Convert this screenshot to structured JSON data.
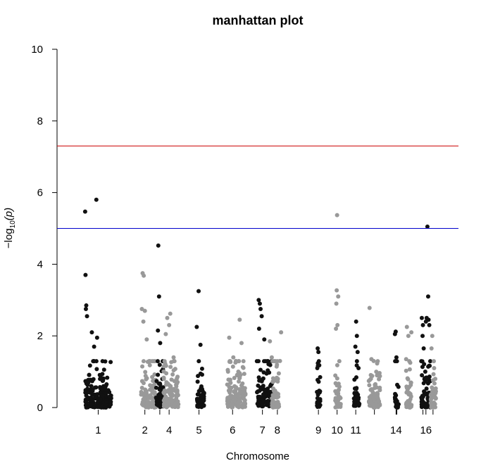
{
  "chart_data": {
    "type": "scatter",
    "title": "manhattan plot",
    "xlabel": "Chromosome",
    "ylabel_main": "−log",
    "ylabel_sub": "10",
    "ylabel_arg": "(p)",
    "ylim": [
      0,
      10
    ],
    "yticks": [
      0,
      2,
      4,
      6,
      8,
      10
    ],
    "thresholds": {
      "genomewide": {
        "value": 7.3,
        "color": "#cc0000"
      },
      "suggestive": {
        "value": 5.0,
        "color": "#0000cc"
      }
    },
    "colors": {
      "odd": "#111111",
      "even": "#999999"
    },
    "xlim": [
      0,
      100
    ],
    "chromosomes": [
      {
        "chr": "1",
        "label": "1",
        "range": [
          3,
          10
        ],
        "label_pos": 6.5,
        "color": "odd",
        "peaks": [
          [
            3.0,
            5.47
          ],
          [
            3.1,
            3.7
          ],
          [
            3.3,
            2.85
          ],
          [
            3.2,
            2.75
          ],
          [
            3.5,
            2.55
          ],
          [
            4.8,
            2.1
          ],
          [
            6.0,
            5.8
          ],
          [
            6.2,
            1.95
          ],
          [
            5.4,
            1.7
          ]
        ]
      },
      {
        "chr": "2",
        "label": "2",
        "range": [
          18,
          22
        ],
        "label_pos": 19,
        "color": "even",
        "peaks": [
          [
            18.4,
            3.75
          ],
          [
            18.7,
            3.68
          ],
          [
            18.2,
            2.75
          ],
          [
            19.0,
            2.7
          ],
          [
            18.6,
            2.4
          ],
          [
            19.5,
            1.9
          ]
        ]
      },
      {
        "chr": "3",
        "label": "",
        "range": [
          22,
          24
        ],
        "label_pos": 23,
        "color": "odd",
        "peaks": [
          [
            22.6,
            4.52
          ],
          [
            22.8,
            3.1
          ],
          [
            22.5,
            2.15
          ],
          [
            23.1,
            1.8
          ]
        ]
      },
      {
        "chr": "4",
        "label": "4",
        "range": [
          24,
          28
        ],
        "label_pos": 25.5,
        "color": "even",
        "peaks": [
          [
            25.8,
            2.62
          ],
          [
            25.0,
            2.5
          ],
          [
            25.5,
            2.3
          ],
          [
            24.6,
            2.05
          ],
          [
            26.7,
            1.4
          ],
          [
            27.5,
            0.7
          ]
        ]
      },
      {
        "chr": "5",
        "label": "5",
        "range": [
          33,
          35
        ],
        "label_pos": 33.5,
        "color": "odd",
        "peaks": [
          [
            33.4,
            3.25
          ],
          [
            32.9,
            2.25
          ],
          [
            33.9,
            1.75
          ],
          [
            34.6,
            0.4
          ],
          [
            34.8,
            0.05
          ]
        ]
      },
      {
        "chr": "6",
        "label": "6",
        "range": [
          41,
          46
        ],
        "label_pos": 42.5,
        "color": "even",
        "peaks": [
          [
            44.4,
            2.45
          ],
          [
            41.6,
            1.95
          ],
          [
            42.7,
            1.4
          ],
          [
            44.9,
            1.8
          ],
          [
            43.4,
            1.3
          ]
        ]
      },
      {
        "chr": "7",
        "label": "7",
        "range": [
          49,
          53
        ],
        "label_pos": 50.5,
        "color": "odd",
        "peaks": [
          [
            49.5,
            3.0
          ],
          [
            49.8,
            2.9
          ],
          [
            50.0,
            2.75
          ],
          [
            50.3,
            2.55
          ],
          [
            49.6,
            2.2
          ],
          [
            51.0,
            1.9
          ]
        ]
      },
      {
        "chr": "8",
        "label": "8",
        "range": [
          53,
          55
        ],
        "label_pos": 54.5,
        "color": "even",
        "peaks": [
          [
            52.5,
            1.85
          ],
          [
            55.5,
            2.1
          ],
          [
            53.0,
            1.4
          ],
          [
            55.2,
            1.3
          ]
        ]
      },
      {
        "chr": "9",
        "label": "9",
        "range": [
          65,
          66
        ],
        "label_pos": 65.5,
        "color": "odd",
        "peaks": [
          [
            65.3,
            1.65
          ],
          [
            65.5,
            1.55
          ],
          [
            65.2,
            1.1
          ]
        ]
      },
      {
        "chr": "10",
        "label": "10",
        "range": [
          70,
          71.5
        ],
        "label_pos": 70.5,
        "color": "even",
        "peaks": [
          [
            70.5,
            5.37
          ],
          [
            70.4,
            3.27
          ],
          [
            70.8,
            3.1
          ],
          [
            70.3,
            2.9
          ],
          [
            70.6,
            2.3
          ],
          [
            70.2,
            2.2
          ]
        ]
      },
      {
        "chr": "11",
        "label": "11",
        "range": [
          75,
          76.5
        ],
        "label_pos": 75.5,
        "color": "odd",
        "peaks": [
          [
            75.6,
            2.4
          ],
          [
            75.8,
            2.0
          ],
          [
            75.4,
            1.7
          ],
          [
            76.0,
            1.55
          ]
        ]
      },
      {
        "chr": "12",
        "label": "",
        "range": [
          79,
          82
        ],
        "label_pos": 80.5,
        "color": "even",
        "peaks": [
          [
            79.2,
            2.78
          ],
          [
            79.7,
            1.35
          ],
          [
            80.3,
            1.3
          ],
          [
            81.0,
            1.0
          ]
        ]
      },
      {
        "chr": "13",
        "label": "",
        "range": [
          86,
          87
        ],
        "label_pos": 86.5,
        "color": "odd",
        "peaks": [
          [
            86.2,
            2.12
          ],
          [
            86.0,
            2.05
          ],
          [
            86.4,
            1.4
          ]
        ]
      },
      {
        "chr": "14",
        "label": "14",
        "range": [
          89,
          90.5
        ],
        "label_pos": 86.3,
        "color": "even",
        "peaks": [
          [
            89.2,
            2.25
          ],
          [
            89.6,
            2.0
          ],
          [
            89.0,
            1.35
          ],
          [
            90.4,
            2.1
          ],
          [
            90.1,
            1.25
          ]
        ]
      },
      {
        "chr": "15",
        "label": "",
        "range": [
          93,
          94
        ],
        "label_pos": 93.5,
        "color": "odd",
        "peaks": [
          [
            93.2,
            2.5
          ],
          [
            93.5,
            2.3
          ],
          [
            93.4,
            2.0
          ],
          [
            93.7,
            1.65
          ]
        ]
      },
      {
        "chr": "16",
        "label": "16",
        "range": [
          94,
          95.5
        ],
        "label_pos": 94.3,
        "color": "odd",
        "peaks": [
          [
            94.7,
            5.05
          ],
          [
            94.9,
            3.1
          ],
          [
            94.5,
            2.5
          ],
          [
            95.0,
            2.45
          ],
          [
            94.3,
            2.4
          ],
          [
            95.2,
            2.3
          ]
        ]
      },
      {
        "chr": "17",
        "label": "",
        "range": [
          95.5,
          97
        ],
        "label_pos": 96.2,
        "color": "even",
        "peaks": [
          [
            96.0,
            2.0
          ],
          [
            95.8,
            1.65
          ],
          [
            96.5,
            1.1
          ],
          [
            96.8,
            0.8
          ]
        ]
      }
    ]
  }
}
